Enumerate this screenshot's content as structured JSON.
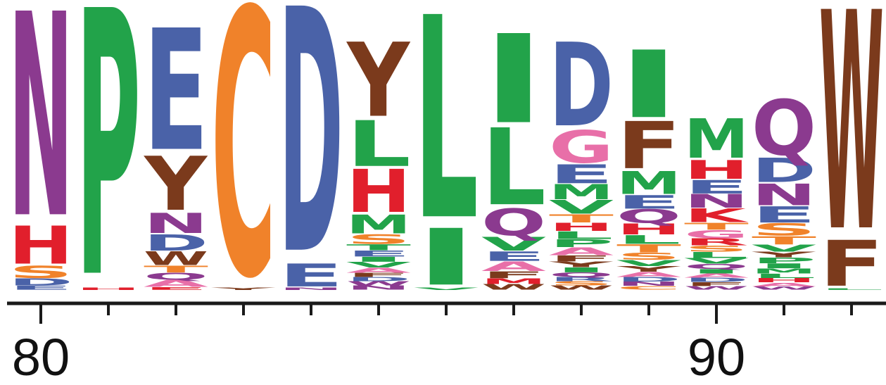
{
  "colors": {
    "purple": "#8b3a8f",
    "green": "#22a34a",
    "blue": "#4a62a8",
    "orange": "#f0822a",
    "red": "#e11f2c",
    "brown": "#7b3a1c",
    "pink": "#e86fa8",
    "axis": "#1a1a1a"
  },
  "chart_data": {
    "type": "sequence-logo",
    "x_start": 80,
    "x_tick_labels": [
      "80",
      "90"
    ],
    "positions": [
      {
        "pos": 80,
        "stack": [
          {
            "letter": "N",
            "color": "purple",
            "height": 0.755
          },
          {
            "letter": "H",
            "color": "red",
            "height": 0.14
          },
          {
            "letter": "S",
            "color": "orange",
            "height": 0.045
          },
          {
            "letter": "D",
            "color": "blue",
            "height": 0.025
          },
          {
            "letter": "E",
            "color": "blue",
            "height": 0.015
          }
        ]
      },
      {
        "pos": 81,
        "stack": [
          {
            "letter": "P",
            "color": "green",
            "height": 0.985
          },
          {
            "letter": "H",
            "color": "red",
            "height": 0.008
          }
        ]
      },
      {
        "pos": 82,
        "stack": [
          {
            "letter": "E",
            "color": "blue",
            "height": 0.45
          },
          {
            "letter": "Y",
            "color": "brown",
            "height": 0.2
          },
          {
            "letter": "N",
            "color": "purple",
            "height": 0.075
          },
          {
            "letter": "D",
            "color": "blue",
            "height": 0.06
          },
          {
            "letter": "W",
            "color": "brown",
            "height": 0.05
          },
          {
            "letter": "T",
            "color": "orange",
            "height": 0.025
          },
          {
            "letter": "Q",
            "color": "purple",
            "height": 0.025
          },
          {
            "letter": "A",
            "color": "pink",
            "height": 0.025
          },
          {
            "letter": "E",
            "color": "red",
            "height": 0.01
          }
        ]
      },
      {
        "pos": 83,
        "stack": [
          {
            "letter": "C",
            "color": "orange",
            "height": 0.985
          },
          {
            "letter": "Y",
            "color": "brown",
            "height": 0.008
          }
        ]
      },
      {
        "pos": 84,
        "stack": [
          {
            "letter": "D",
            "color": "blue",
            "height": 0.905
          },
          {
            "letter": "E",
            "color": "blue",
            "height": 0.085
          },
          {
            "letter": "N",
            "color": "purple",
            "height": 0.008
          }
        ]
      },
      {
        "pos": 85,
        "stack": [
          {
            "letter": "Y",
            "color": "brown",
            "height": 0.275
          },
          {
            "letter": "L",
            "color": "green",
            "height": 0.17
          },
          {
            "letter": "H",
            "color": "red",
            "height": 0.16
          },
          {
            "letter": "M",
            "color": "green",
            "height": 0.07
          },
          {
            "letter": "S",
            "color": "orange",
            "height": 0.035
          },
          {
            "letter": "T",
            "color": "green",
            "height": 0.022
          },
          {
            "letter": "E",
            "color": "blue",
            "height": 0.022
          },
          {
            "letter": "I",
            "color": "green",
            "height": 0.018
          },
          {
            "letter": "V",
            "color": "green",
            "height": 0.02
          },
          {
            "letter": "A",
            "color": "pink",
            "height": 0.018
          },
          {
            "letter": "F",
            "color": "brown",
            "height": 0.015
          },
          {
            "letter": "D",
            "color": "blue",
            "height": 0.015
          },
          {
            "letter": "W",
            "color": "purple",
            "height": 0.015
          },
          {
            "letter": "N",
            "color": "purple",
            "height": 0.015
          }
        ]
      },
      {
        "pos": 86,
        "stack": [
          {
            "letter": "L",
            "color": "green",
            "height": 0.75
          },
          {
            "letter": "I",
            "color": "green",
            "height": 0.21
          },
          {
            "letter": "V",
            "color": "green",
            "height": 0.008
          }
        ]
      },
      {
        "pos": 87,
        "stack": [
          {
            "letter": "I",
            "color": "green",
            "height": 0.33
          },
          {
            "letter": "L",
            "color": "green",
            "height": 0.285
          },
          {
            "letter": "Q",
            "color": "purple",
            "height": 0.1
          },
          {
            "letter": "V",
            "color": "green",
            "height": 0.05
          },
          {
            "letter": "E",
            "color": "blue",
            "height": 0.035
          },
          {
            "letter": "A",
            "color": "pink",
            "height": 0.035
          },
          {
            "letter": "F",
            "color": "brown",
            "height": 0.025
          },
          {
            "letter": "M",
            "color": "red",
            "height": 0.02
          },
          {
            "letter": "W",
            "color": "brown",
            "height": 0.02
          }
        ]
      },
      {
        "pos": 88,
        "stack": [
          {
            "letter": "D",
            "color": "blue",
            "height": 0.31
          },
          {
            "letter": "G",
            "color": "pink",
            "height": 0.12
          },
          {
            "letter": "E",
            "color": "blue",
            "height": 0.07
          },
          {
            "letter": "M",
            "color": "green",
            "height": 0.055
          },
          {
            "letter": "V",
            "color": "green",
            "height": 0.05
          },
          {
            "letter": "T",
            "color": "orange",
            "height": 0.03
          },
          {
            "letter": "H",
            "color": "red",
            "height": 0.03
          },
          {
            "letter": "L",
            "color": "green",
            "height": 0.028
          },
          {
            "letter": "P",
            "color": "green",
            "height": 0.028
          },
          {
            "letter": "A",
            "color": "pink",
            "height": 0.028
          },
          {
            "letter": "F",
            "color": "brown",
            "height": 0.022
          },
          {
            "letter": "Y",
            "color": "brown",
            "height": 0.02
          },
          {
            "letter": "I",
            "color": "green",
            "height": 0.018
          },
          {
            "letter": "Q",
            "color": "purple",
            "height": 0.016
          },
          {
            "letter": "R",
            "color": "blue",
            "height": 0.015
          },
          {
            "letter": "S",
            "color": "orange",
            "height": 0.015
          },
          {
            "letter": "W",
            "color": "brown",
            "height": 0.015
          }
        ]
      },
      {
        "pos": 89,
        "stack": [
          {
            "letter": "I",
            "color": "green",
            "height": 0.25
          },
          {
            "letter": "F",
            "color": "brown",
            "height": 0.175
          },
          {
            "letter": "M",
            "color": "green",
            "height": 0.085
          },
          {
            "letter": "E",
            "color": "blue",
            "height": 0.05
          },
          {
            "letter": "Q",
            "color": "purple",
            "height": 0.05
          },
          {
            "letter": "H",
            "color": "red",
            "height": 0.04
          },
          {
            "letter": "L",
            "color": "green",
            "height": 0.032
          },
          {
            "letter": "T",
            "color": "orange",
            "height": 0.03
          },
          {
            "letter": "S",
            "color": "orange",
            "height": 0.025
          },
          {
            "letter": "V",
            "color": "green",
            "height": 0.022
          },
          {
            "letter": "Y",
            "color": "brown",
            "height": 0.02
          },
          {
            "letter": "A",
            "color": "pink",
            "height": 0.018
          },
          {
            "letter": "D",
            "color": "blue",
            "height": 0.016
          },
          {
            "letter": "N",
            "color": "purple",
            "height": 0.015
          },
          {
            "letter": "C",
            "color": "orange",
            "height": 0.014
          }
        ]
      },
      {
        "pos": 90,
        "stack": [
          {
            "letter": "M",
            "color": "green",
            "height": 0.145
          },
          {
            "letter": "H",
            "color": "red",
            "height": 0.07
          },
          {
            "letter": "E",
            "color": "blue",
            "height": 0.05
          },
          {
            "letter": "N",
            "color": "purple",
            "height": 0.05
          },
          {
            "letter": "K",
            "color": "red",
            "height": 0.05
          },
          {
            "letter": "T",
            "color": "orange",
            "height": 0.025
          },
          {
            "letter": "G",
            "color": "pink",
            "height": 0.03
          },
          {
            "letter": "R",
            "color": "red",
            "height": 0.025
          },
          {
            "letter": "S",
            "color": "orange",
            "height": 0.022
          },
          {
            "letter": "L",
            "color": "green",
            "height": 0.022
          },
          {
            "letter": "V",
            "color": "green",
            "height": 0.02
          },
          {
            "letter": "Q",
            "color": "purple",
            "height": 0.018
          },
          {
            "letter": "I",
            "color": "green",
            "height": 0.016
          },
          {
            "letter": "A",
            "color": "pink",
            "height": 0.015
          },
          {
            "letter": "D",
            "color": "blue",
            "height": 0.015
          },
          {
            "letter": "F",
            "color": "brown",
            "height": 0.014
          },
          {
            "letter": "W",
            "color": "purple",
            "height": 0.013
          }
        ]
      },
      {
        "pos": 91,
        "stack": [
          {
            "letter": "Q",
            "color": "purple",
            "height": 0.205
          },
          {
            "letter": "D",
            "color": "blue",
            "height": 0.09
          },
          {
            "letter": "N",
            "color": "purple",
            "height": 0.08
          },
          {
            "letter": "E",
            "color": "blue",
            "height": 0.06
          },
          {
            "letter": "S",
            "color": "orange",
            "height": 0.045
          },
          {
            "letter": "T",
            "color": "orange",
            "height": 0.03
          },
          {
            "letter": "V",
            "color": "green",
            "height": 0.025
          },
          {
            "letter": "Y",
            "color": "brown",
            "height": 0.02
          },
          {
            "letter": "P",
            "color": "green",
            "height": 0.02
          },
          {
            "letter": "I",
            "color": "green",
            "height": 0.018
          },
          {
            "letter": "M",
            "color": "green",
            "height": 0.018
          },
          {
            "letter": "L",
            "color": "green",
            "height": 0.016
          },
          {
            "letter": "H",
            "color": "red",
            "height": 0.015
          },
          {
            "letter": "A",
            "color": "pink",
            "height": 0.014
          },
          {
            "letter": "W",
            "color": "purple",
            "height": 0.012
          }
        ]
      },
      {
        "pos": 92,
        "stack": [
          {
            "letter": "W",
            "color": "brown",
            "height": 0.81
          },
          {
            "letter": "F",
            "color": "brown",
            "height": 0.17
          },
          {
            "letter": "L",
            "color": "green",
            "height": 0.006
          }
        ]
      }
    ]
  }
}
